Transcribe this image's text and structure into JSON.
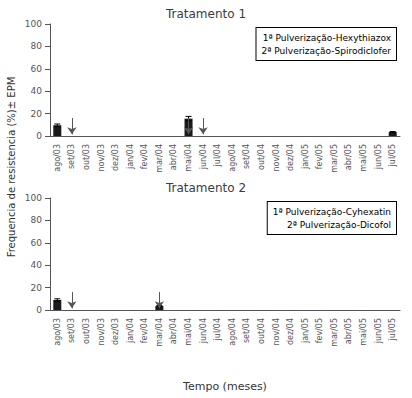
{
  "chart_data": [
    {
      "type": "bar",
      "title": "Tratamento 1",
      "categories": [
        "ago/03",
        "set/03",
        "out/03",
        "nov/03",
        "dez/03",
        "jan/04",
        "fev/04",
        "mar/04",
        "abr/04",
        "mai/04",
        "jun/04",
        "jul/04",
        "ago/04",
        "set/04",
        "out/04",
        "nov/04",
        "dez/04",
        "jan/05",
        "fev/05",
        "mar/05",
        "abr/05",
        "mai/05",
        "jun/05",
        "jul/05"
      ],
      "values": [
        9.5,
        0,
        0,
        0,
        0,
        0,
        0,
        0,
        0,
        15.5,
        0,
        0,
        0,
        0,
        0,
        0,
        0,
        0,
        0,
        0,
        0,
        0,
        0,
        3.5
      ],
      "errors": [
        1.2,
        0,
        0,
        0,
        0,
        0,
        0,
        0,
        0,
        2.0,
        0,
        0,
        0,
        0,
        0,
        0,
        0,
        0,
        0,
        0,
        0,
        0,
        0,
        0.5
      ],
      "color": "#1a1a1a",
      "ylim": [
        0,
        100
      ],
      "yticks": [
        0,
        20,
        40,
        60,
        80,
        100
      ],
      "grid": false,
      "annotations": [
        "1ª Pulverização-Hexythiazox",
        "2ª Pulverização-Spirodiclofer"
      ],
      "arrows": {
        "categories": [
          "set/03",
          "mai/04",
          "jun/04"
        ],
        "from": 16,
        "to": 1.5,
        "color": "#555555"
      },
      "ylabel": "Frequencia de resistencia (%)± EPM"
    },
    {
      "type": "bar",
      "title": "Tratamento 2",
      "categories": [
        "ago/03",
        "set/03",
        "out/03",
        "nov/03",
        "dez/03",
        "jan/04",
        "fev/04",
        "mar/04",
        "abr/04",
        "mai/04",
        "jun/04",
        "jul/04",
        "ago/04",
        "set/04",
        "out/04",
        "nov/04",
        "dez/04",
        "jan/05",
        "fev/05",
        "mar/05",
        "abr/05",
        "mai/05",
        "jun/05",
        "jul/05"
      ],
      "values": [
        9.0,
        0,
        0,
        0,
        0,
        0,
        0,
        3.5,
        0,
        0,
        0,
        0,
        0,
        0,
        0,
        0,
        0,
        0,
        0,
        0,
        0,
        0,
        0,
        0
      ],
      "errors": [
        1.0,
        0,
        0,
        0,
        0,
        0,
        0,
        0.5,
        0,
        0,
        0,
        0,
        0,
        0,
        0,
        0,
        0,
        0,
        0,
        0,
        0,
        0,
        0,
        0
      ],
      "color": "#1a1a1a",
      "ylim": [
        0,
        100
      ],
      "yticks": [
        0,
        20,
        40,
        60,
        80,
        100
      ],
      "grid": false,
      "annotations": [
        "1ª Pulverização-Cyhexatin",
        "2ª Pulverização-Dicofol"
      ],
      "arrows": {
        "categories": [
          "set/03",
          "mar/04"
        ],
        "from": 16,
        "to": 1.5,
        "color": "#555555"
      },
      "xlabel": "Tempo (meses)"
    }
  ]
}
